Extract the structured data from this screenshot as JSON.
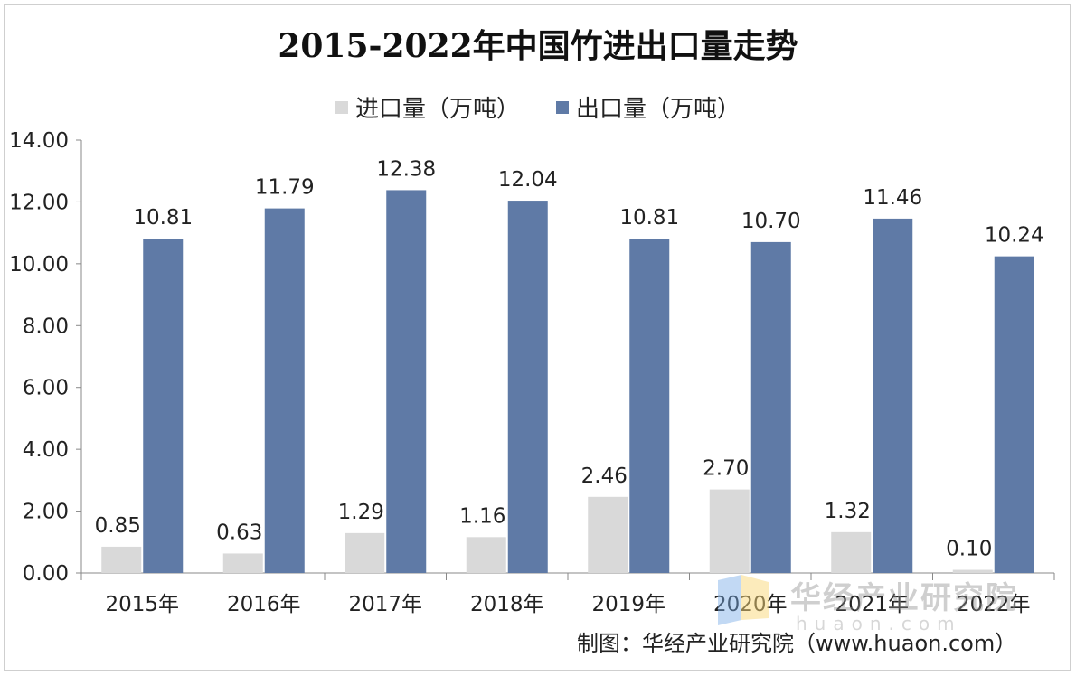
{
  "chart_data": {
    "type": "bar",
    "title": "2015-2022年中国竹进出口量走势",
    "categories": [
      "2015年",
      "2016年",
      "2017年",
      "2018年",
      "2019年",
      "2020年",
      "2021年",
      "2022年"
    ],
    "series": [
      {
        "name": "进口量（万吨）",
        "color": "#d9d9d9",
        "values": [
          0.85,
          0.63,
          1.29,
          1.16,
          2.46,
          2.7,
          1.32,
          0.1
        ],
        "labels": [
          "0.85",
          "0.63",
          "1.29",
          "1.16",
          "2.46",
          "2.70",
          "1.32",
          "0.10"
        ]
      },
      {
        "name": "出口量（万吨）",
        "color": "#5f7aa6",
        "values": [
          10.81,
          11.79,
          12.38,
          12.04,
          10.81,
          10.7,
          11.46,
          10.24
        ],
        "labels": [
          "10.81",
          "11.79",
          "12.38",
          "12.04",
          "10.81",
          "10.70",
          "11.46",
          "10.24"
        ]
      }
    ],
    "ylim": [
      0,
      14
    ],
    "yticks": [
      "0.00",
      "2.00",
      "4.00",
      "6.00",
      "8.00",
      "10.00",
      "12.00",
      "14.00"
    ],
    "grid": false,
    "legend_position": "top"
  },
  "source": "制图：华经产业研究院（www.huaon.com）",
  "watermark": {
    "text": "华经产业研究院",
    "url": "huaon.com"
  }
}
